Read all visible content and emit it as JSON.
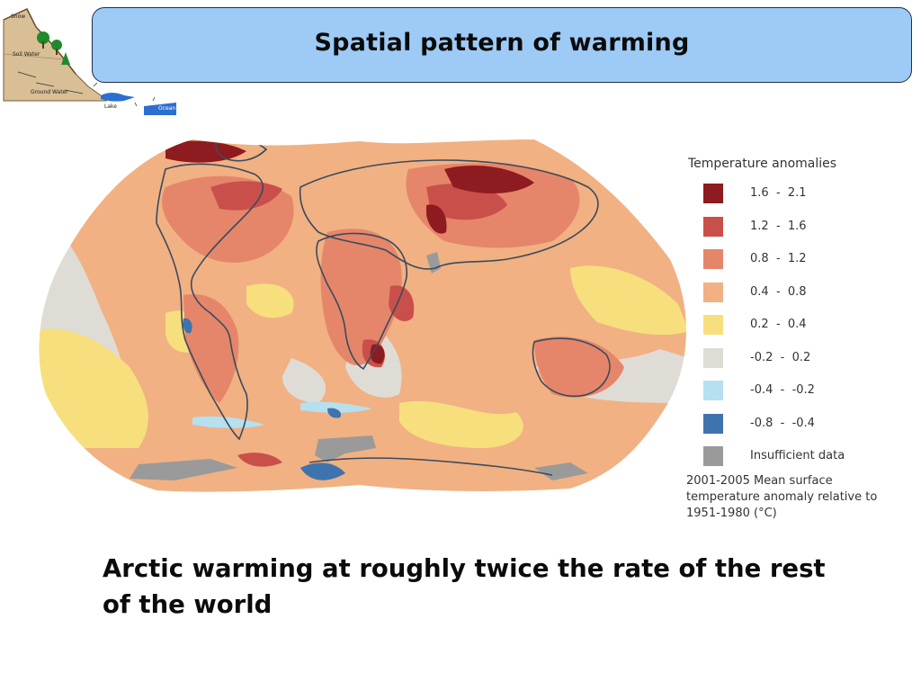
{
  "slide": {
    "title": "Spatial pattern of warming",
    "caption": "Arctic warming at roughly twice the rate of the rest of the world"
  },
  "logo": {
    "labels": [
      "Snow",
      "Soil Water",
      "Ground Water",
      "Lake",
      "Ocean"
    ]
  },
  "legend": {
    "title": "Temperature anomalies",
    "items": [
      {
        "range": "1.6  -  2.1",
        "color": "#8e1b1f"
      },
      {
        "range": "1.2  -  1.6",
        "color": "#c9504a"
      },
      {
        "range": "0.8  -  1.2",
        "color": "#e5866a"
      },
      {
        "range": "0.4  -  0.8",
        "color": "#f1b183"
      },
      {
        "range": "0.2  -  0.4",
        "color": "#f7df7e"
      },
      {
        "range": "-0.2  -  0.2",
        "color": "#dfdcd6"
      },
      {
        "range": "-0.4  -  -0.2",
        "color": "#b6dff0"
      },
      {
        "range": "-0.8  -  -0.4",
        "color": "#3f73ae"
      },
      {
        "range": "Insufficient data",
        "color": "#9a9a9a"
      }
    ],
    "note": "2001-2005 Mean surface temperature anomaly relative to 1951-1980 (°C)"
  },
  "map": {
    "land_outline_color": "#3b4a5e",
    "ocean_base_color": "#f1b183"
  }
}
